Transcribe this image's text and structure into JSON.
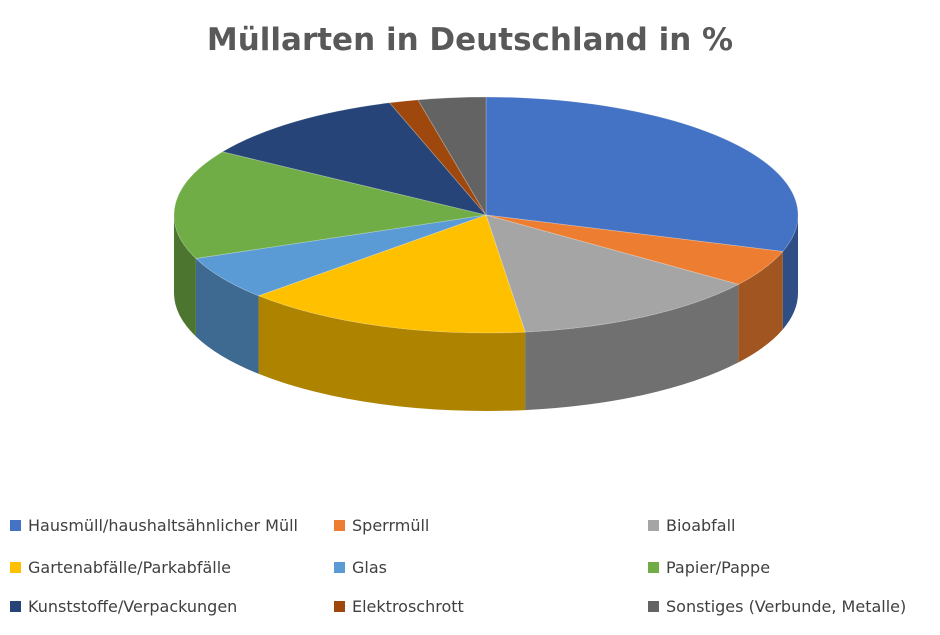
{
  "chart_data": {
    "type": "pie",
    "title": "Müllarten in Deutschland in %",
    "legend_position": "bottom",
    "series": [
      {
        "category": "Hausmüll/haushaltsähnlicher Müll",
        "value": 30,
        "color": "#4472c4"
      },
      {
        "category": "Sperrmüll",
        "value": 5,
        "color": "#ed7d31"
      },
      {
        "category": "Bioabfall",
        "value": 13,
        "color": "#a5a5a5"
      },
      {
        "category": "Gartenabfälle/Parkabfälle",
        "value": 15,
        "color": "#ffc000"
      },
      {
        "category": "Glas",
        "value": 6,
        "color": "#5b9bd5"
      },
      {
        "category": "Papier/Pappe",
        "value": 15,
        "color": "#70ad47"
      },
      {
        "category": "Kunststoffe/Verpackungen",
        "value": 11,
        "color": "#264478"
      },
      {
        "category": "Elektroschrott",
        "value": 1.5,
        "color": "#9e480e"
      },
      {
        "category": "Sonstiges (Verbunde, Metalle)",
        "value": 3.5,
        "color": "#636363"
      }
    ]
  }
}
